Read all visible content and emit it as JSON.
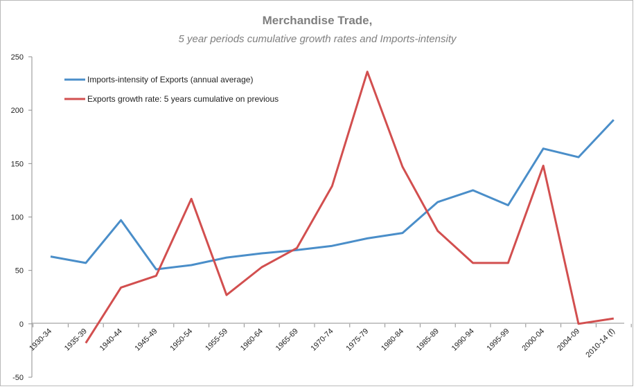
{
  "chart_data": {
    "type": "line",
    "title": "Merchandise Trade,",
    "subtitle": "5 year periods cumulative growth rates and Imports-intensity",
    "xlabel": "",
    "ylabel": "",
    "ylim": [
      -50,
      250
    ],
    "yticks": [
      -50,
      0,
      50,
      100,
      150,
      200,
      250
    ],
    "grid": false,
    "legend_position": "top-left",
    "categories": [
      "1930-34",
      "1935-39",
      "1940-44",
      "1945-49",
      "1950-54",
      "1955-59",
      "1960-64",
      "1965-69",
      "1970-74",
      "1975-79",
      "1980-84",
      "1985-89",
      "1990-94",
      "1995-99",
      "2000-04",
      "2004-09",
      "2010-14 (f)"
    ],
    "series": [
      {
        "name": "Imports-intensity of Exports (annual average)",
        "color": "#4a8ec9",
        "values": [
          63,
          57,
          97,
          51,
          55,
          62,
          66,
          69,
          73,
          80,
          85,
          114,
          125,
          111,
          164,
          156,
          191
        ]
      },
      {
        "name": "Exports growth rate: 5 years cumulative on previous",
        "color": "#d24f4f",
        "values": [
          null,
          -18,
          34,
          45,
          117,
          27,
          53,
          71,
          129,
          236,
          147,
          87,
          57,
          57,
          148,
          0,
          5
        ]
      }
    ]
  }
}
